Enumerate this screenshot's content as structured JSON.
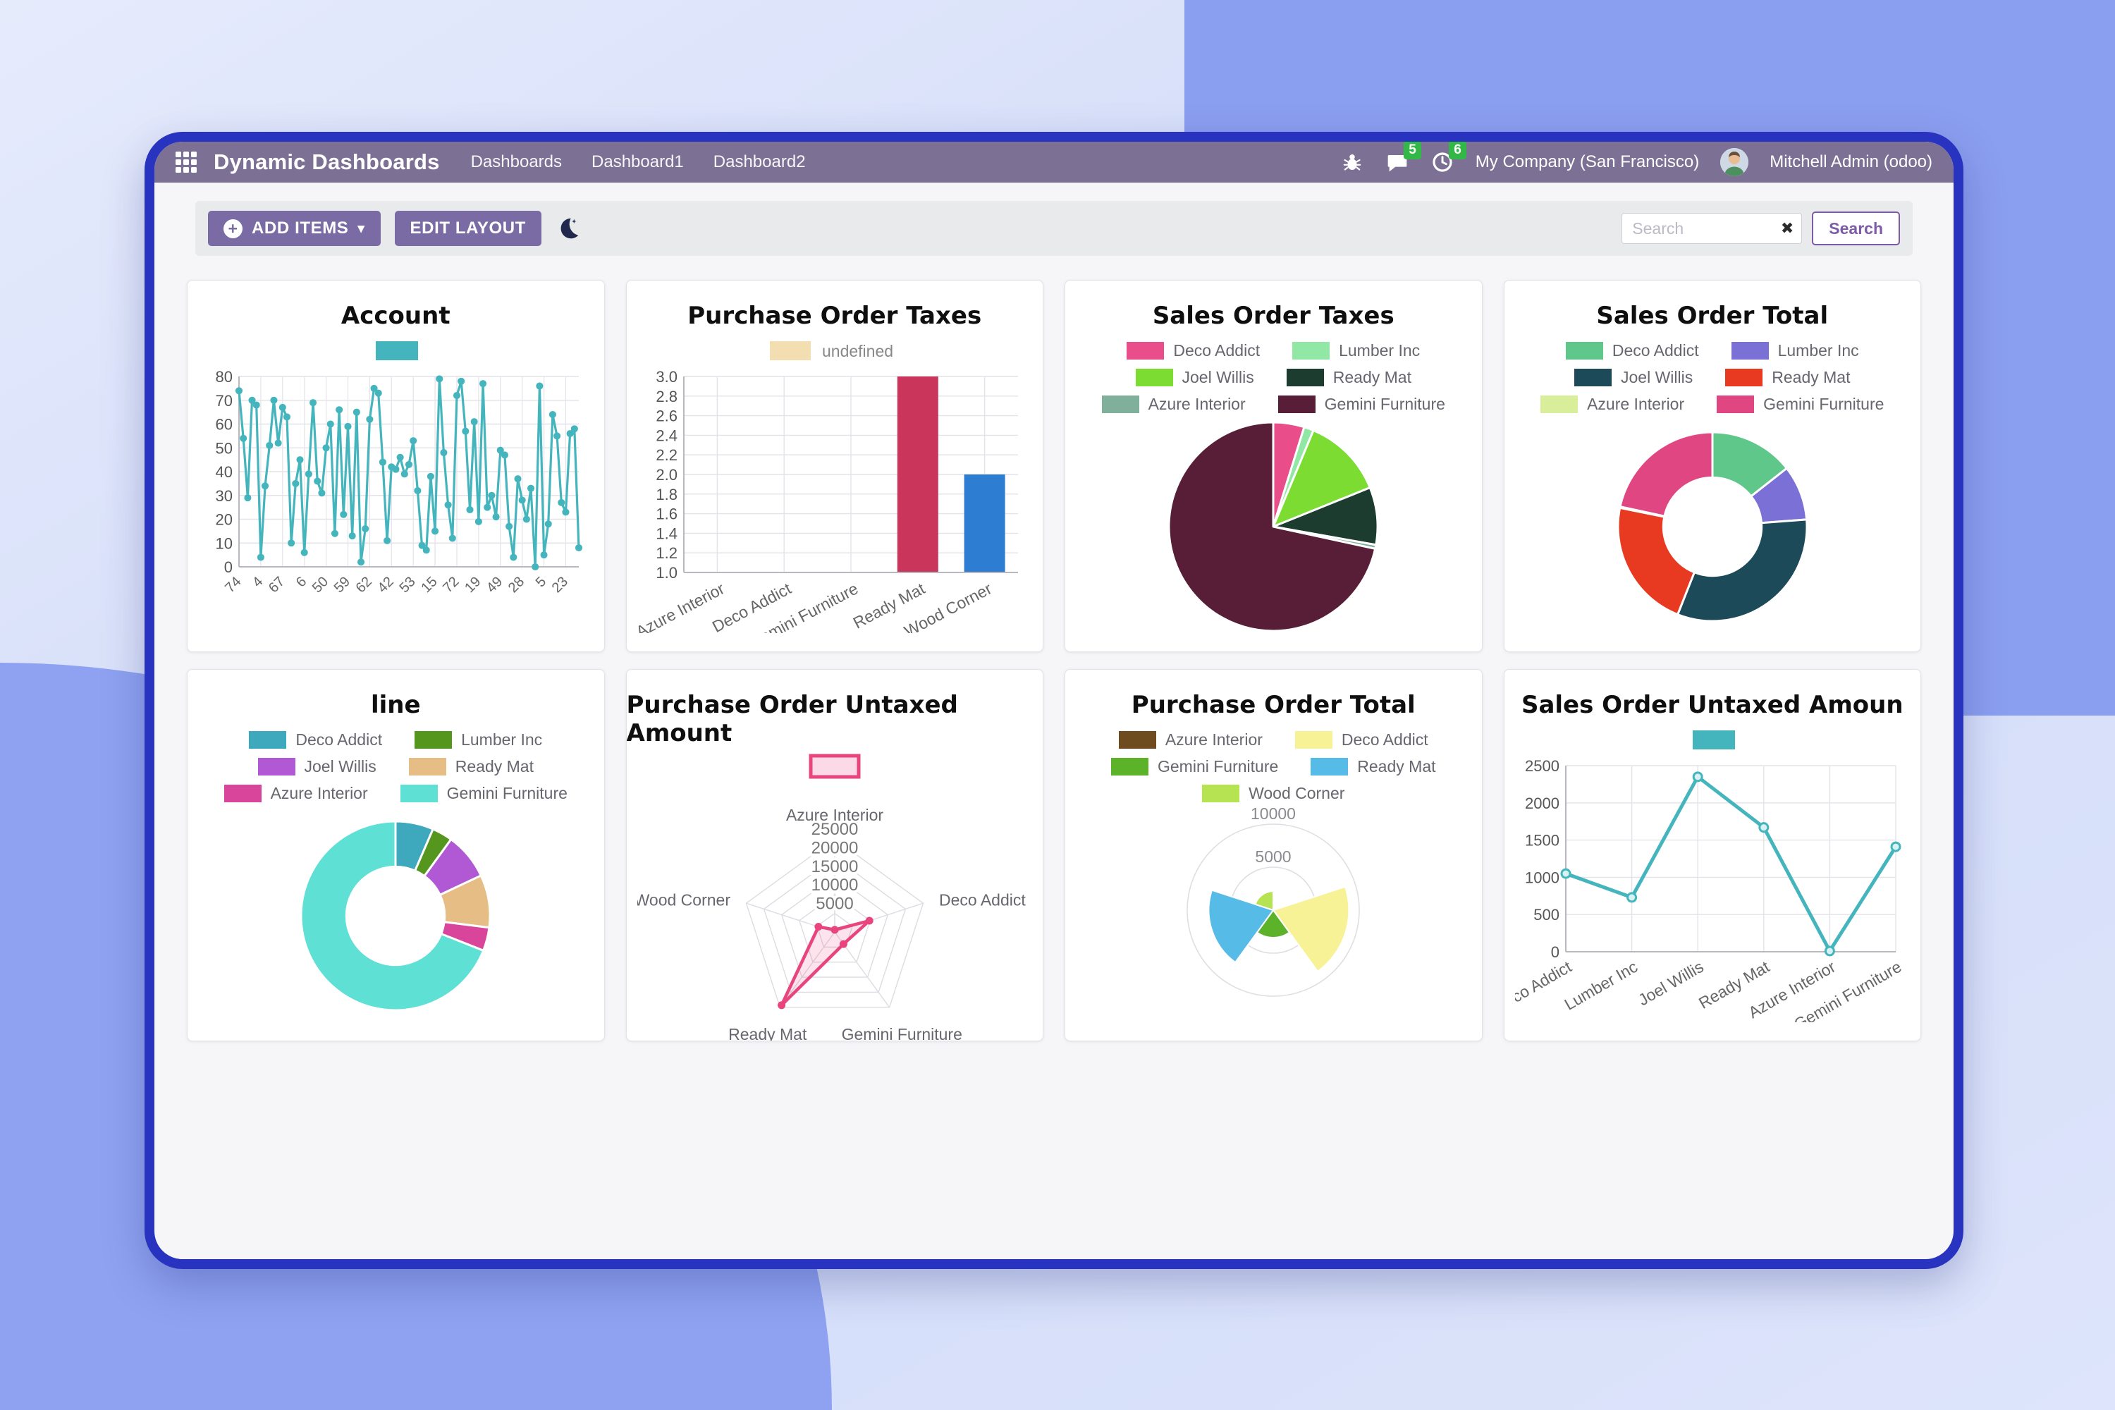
{
  "app": {
    "topbar": {
      "brand": "Dynamic Dashboards",
      "menus": [
        "Dashboards",
        "Dashboard1",
        "Dashboard2"
      ],
      "message_badge": "5",
      "activity_badge": "6",
      "company": "My Company (San Francisco)",
      "user": "Mitchell Admin (odoo)"
    },
    "toolbar": {
      "add_items": "ADD ITEMS",
      "edit_layout": "EDIT LAYOUT",
      "search_placeholder": "Search",
      "search_button": "Search"
    },
    "icons": {
      "caret": "▾",
      "clear": "✖",
      "plus": "+"
    },
    "colors": {
      "topbar": "#7c7095",
      "button_purple": "#7a6ba4",
      "search_accent": "#7d5ba6",
      "badge_green": "#33b747",
      "window_border": "#2834c0",
      "teal_series": "#45b5bd"
    }
  },
  "cards": [
    {
      "title": "Account",
      "chart_data": {
        "type": "line",
        "color": "#45b5bd",
        "ylim": [
          0,
          80
        ],
        "ytick_step": 10,
        "label_every": 5,
        "x_labels": [
          "74",
          "4",
          "67",
          "6",
          "50",
          "59",
          "62",
          "42",
          "53",
          "15",
          "72",
          "19",
          "49",
          "28",
          "5",
          "23"
        ],
        "values": [
          74,
          54,
          29,
          70,
          68,
          4,
          34,
          51,
          70,
          52,
          67,
          63,
          10,
          35,
          45,
          6,
          39,
          69,
          36,
          31,
          50,
          60,
          14,
          66,
          22,
          59,
          13,
          65,
          2,
          16,
          62,
          75,
          73,
          44,
          11,
          42,
          41,
          46,
          39,
          43,
          53,
          32,
          9,
          7,
          38,
          15,
          79,
          48,
          26,
          12,
          72,
          78,
          57,
          24,
          61,
          19,
          77,
          25,
          30,
          21,
          49,
          47,
          17,
          4,
          37,
          28,
          20,
          33,
          0,
          76,
          5,
          18,
          64,
          55,
          27,
          23,
          56,
          58,
          8
        ],
        "legend_label": null
      }
    },
    {
      "title": "Purchase Order Taxes",
      "chart_data": {
        "type": "bar",
        "legend_label": "undefined",
        "legend_color": "#f2deb0",
        "categories": [
          "Azure Interior",
          "Deco Addict",
          "Gemini Furniture",
          "Ready Mat",
          "Wood Corner"
        ],
        "values": [
          null,
          null,
          null,
          3,
          2
        ],
        "bar_colors": [
          null,
          null,
          null,
          "#c9355b",
          "#2d7dd2"
        ],
        "ylim": [
          1.0,
          3.0
        ],
        "ytick_step": 0.2
      }
    },
    {
      "title": "Sales Order Taxes",
      "chart_data": {
        "type": "pie",
        "units": "percent (estimated from pixels)",
        "series": [
          {
            "name": "Deco Addict",
            "value": 4.8,
            "color": "#e94d8a"
          },
          {
            "name": "Lumber Inc",
            "value": 1.5,
            "color": "#90e8a4"
          },
          {
            "name": "Joel Willis",
            "value": 12.6,
            "color": "#7cdc32"
          },
          {
            "name": "Ready Mat",
            "value": 8.9,
            "color": "#1c3c30"
          },
          {
            "name": "Azure Interior",
            "value": 0.6,
            "color": "#80af9c"
          },
          {
            "name": "Gemini Furniture",
            "value": 71.6,
            "color": "#591e37"
          }
        ]
      }
    },
    {
      "title": "Sales Order Total",
      "chart_data": {
        "type": "doughnut",
        "units": "percent (estimated from pixels)",
        "series": [
          {
            "name": "Deco Addict",
            "value": 14.4,
            "color": "#5fc789"
          },
          {
            "name": "Lumber Inc",
            "value": 9.4,
            "color": "#7a70d6"
          },
          {
            "name": "Joel Willis",
            "value": 32.2,
            "color": "#1c4a58"
          },
          {
            "name": "Ready Mat",
            "value": 22.2,
            "color": "#e73a20"
          },
          {
            "name": "Azure Interior",
            "value": 0.2,
            "color": "#d9ee9b"
          },
          {
            "name": "Gemini Furniture",
            "value": 21.6,
            "color": "#df4682"
          }
        ]
      }
    },
    {
      "title": "line",
      "chart_data": {
        "type": "doughnut",
        "units": "percent (estimated from pixels)",
        "series": [
          {
            "name": "Deco Addict",
            "value": 6.5,
            "color": "#3ea8bc"
          },
          {
            "name": "Lumber Inc",
            "value": 3.5,
            "color": "#55961e"
          },
          {
            "name": "Joel Willis",
            "value": 8.0,
            "color": "#b158d4"
          },
          {
            "name": "Ready Mat",
            "value": 9.0,
            "color": "#e7bd86"
          },
          {
            "name": "Azure Interior",
            "value": 4.0,
            "color": "#d8459a"
          },
          {
            "name": "Gemini Furniture",
            "value": 69.0,
            "color": "#5ee0d4"
          }
        ]
      }
    },
    {
      "title": "Purchase Order Untaxed Amount",
      "chart_data": {
        "type": "radar",
        "color": "#e8457e",
        "fill": "rgba(232,69,126,0.15)",
        "legend_fill": "#fbd9e6",
        "legend_label": null,
        "axes": [
          "Azure Interior",
          "Deco Addict",
          "Gemini Furniture",
          "Ready Mat",
          "Wood Corner"
        ],
        "values": [
          600,
          9800,
          4000,
          24300,
          4600
        ],
        "rmax": 25000,
        "rticks": [
          5000,
          10000,
          15000,
          20000,
          25000
        ]
      }
    },
    {
      "title": "Purchase Order Total",
      "chart_data": {
        "type": "polarArea",
        "rmax": 10000,
        "rticks": [
          5000,
          10000
        ],
        "series": [
          {
            "name": "Azure Interior",
            "value": 200,
            "color": "#6f4c20"
          },
          {
            "name": "Deco Addict",
            "value": 8800,
            "color": "#f7f295"
          },
          {
            "name": "Gemini Furniture",
            "value": 3200,
            "color": "#5cb32a"
          },
          {
            "name": "Ready Mat",
            "value": 7500,
            "color": "#56bbe7"
          },
          {
            "name": "Wood Corner",
            "value": 2200,
            "color": "#b6e352"
          }
        ]
      }
    },
    {
      "title": "Sales Order Untaxed Amoun",
      "chart_data": {
        "type": "line",
        "color": "#45b5bd",
        "ylim": [
          0,
          2500
        ],
        "ytick_step": 500,
        "categories": [
          "Deco Addict",
          "Lumber Inc",
          "Joel Willis",
          "Ready Mat",
          "Azure Interior",
          "Gemini Furniture"
        ],
        "values": [
          1050,
          730,
          2350,
          1670,
          10,
          1410
        ],
        "legend_label": null
      }
    }
  ]
}
